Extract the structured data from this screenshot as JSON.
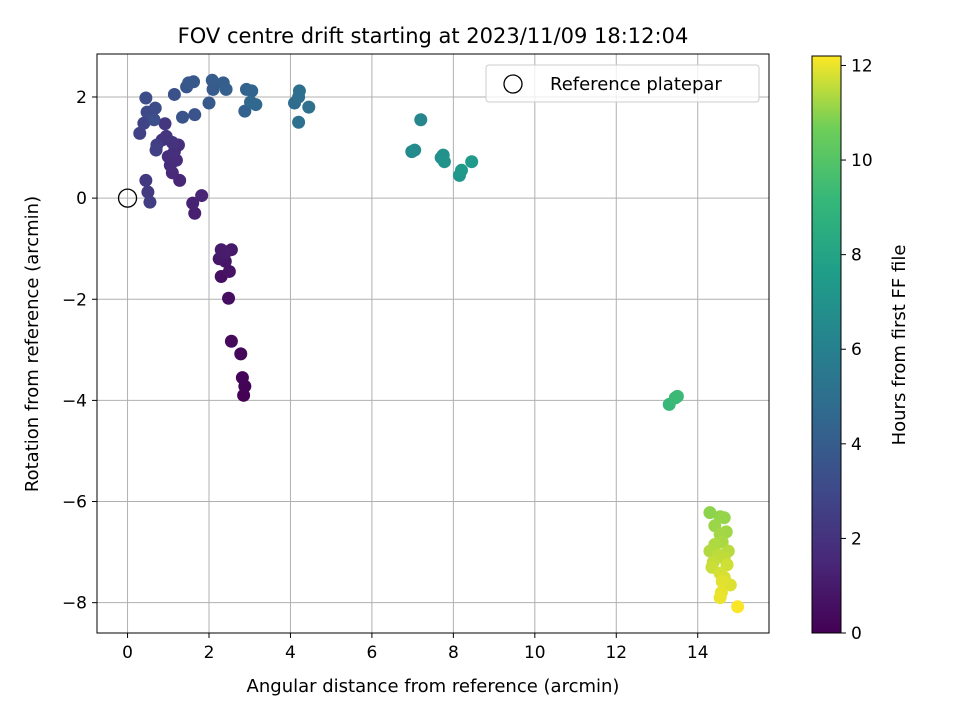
{
  "chart_data": {
    "type": "scatter",
    "title": "FOV centre drift starting at 2023/11/09 18:12:04",
    "xlabel": "Angular distance from reference (arcmin)",
    "ylabel": "Rotation from reference (arcmin)",
    "xlim": [
      -0.75,
      15.75
    ],
    "ylim": [
      -8.6,
      2.85
    ],
    "xticks": [
      0,
      2,
      4,
      6,
      8,
      10,
      12,
      14
    ],
    "yticks": [
      -8,
      -6,
      -4,
      -2,
      0,
      2
    ],
    "grid": true,
    "legend": {
      "placement": "top-right",
      "entries": [
        "Reference platepar"
      ]
    },
    "reference_point": {
      "name": "Reference platepar",
      "x": 0,
      "y": 0
    },
    "colorbar": {
      "label": "Hours from first FF file",
      "range": [
        0,
        12.2
      ],
      "ticks": [
        0,
        2,
        4,
        6,
        8,
        10,
        12
      ],
      "colormap": "viridis"
    },
    "points": [
      {
        "x": 2.85,
        "y": -3.9,
        "c": 0.05
      },
      {
        "x": 2.88,
        "y": -3.72,
        "c": 0.1
      },
      {
        "x": 2.82,
        "y": -3.55,
        "c": 0.15
      },
      {
        "x": 2.78,
        "y": -3.08,
        "c": 0.25
      },
      {
        "x": 2.55,
        "y": -2.83,
        "c": 0.35
      },
      {
        "x": 2.48,
        "y": -1.98,
        "c": 0.5
      },
      {
        "x": 2.3,
        "y": -1.55,
        "c": 0.6
      },
      {
        "x": 2.5,
        "y": -1.45,
        "c": 0.7
      },
      {
        "x": 2.4,
        "y": -1.25,
        "c": 0.8
      },
      {
        "x": 2.25,
        "y": -1.2,
        "c": 0.85
      },
      {
        "x": 2.35,
        "y": -1.12,
        "c": 0.9
      },
      {
        "x": 2.55,
        "y": -1.02,
        "c": 0.95
      },
      {
        "x": 2.3,
        "y": -1.02,
        "c": 1.0
      },
      {
        "x": 2.4,
        "y": -1.08,
        "c": 1.05
      },
      {
        "x": 1.65,
        "y": -0.3,
        "c": 1.2
      },
      {
        "x": 1.6,
        "y": -0.1,
        "c": 1.3
      },
      {
        "x": 1.82,
        "y": 0.05,
        "c": 1.4
      },
      {
        "x": 1.28,
        "y": 0.35,
        "c": 1.5
      },
      {
        "x": 1.1,
        "y": 0.5,
        "c": 1.6
      },
      {
        "x": 1.05,
        "y": 0.65,
        "c": 1.7
      },
      {
        "x": 1.2,
        "y": 0.75,
        "c": 1.75
      },
      {
        "x": 1.0,
        "y": 0.82,
        "c": 1.8
      },
      {
        "x": 1.15,
        "y": 0.92,
        "c": 1.85
      },
      {
        "x": 1.25,
        "y": 1.05,
        "c": 1.9
      },
      {
        "x": 0.85,
        "y": 1.15,
        "c": 1.95
      },
      {
        "x": 1.1,
        "y": 1.1,
        "c": 2.0
      },
      {
        "x": 0.95,
        "y": 1.22,
        "c": 2.1
      },
      {
        "x": 0.92,
        "y": 1.47,
        "c": 2.2
      },
      {
        "x": 0.45,
        "y": 0.35,
        "c": 2.3
      },
      {
        "x": 0.5,
        "y": 0.12,
        "c": 2.35
      },
      {
        "x": 0.55,
        "y": -0.08,
        "c": 2.4
      },
      {
        "x": 0.72,
        "y": 1.05,
        "c": 2.5
      },
      {
        "x": 0.7,
        "y": 0.95,
        "c": 2.6
      },
      {
        "x": 0.3,
        "y": 1.28,
        "c": 2.7
      },
      {
        "x": 0.4,
        "y": 1.48,
        "c": 2.8
      },
      {
        "x": 0.6,
        "y": 1.6,
        "c": 2.9
      },
      {
        "x": 0.48,
        "y": 1.7,
        "c": 3.0
      },
      {
        "x": 0.68,
        "y": 1.78,
        "c": 3.1
      },
      {
        "x": 0.45,
        "y": 1.98,
        "c": 3.2
      },
      {
        "x": 0.65,
        "y": 1.55,
        "c": 3.3
      },
      {
        "x": 1.15,
        "y": 2.05,
        "c": 3.4
      },
      {
        "x": 1.35,
        "y": 1.6,
        "c": 3.5
      },
      {
        "x": 1.65,
        "y": 1.65,
        "c": 3.55
      },
      {
        "x": 1.45,
        "y": 2.2,
        "c": 3.6
      },
      {
        "x": 1.5,
        "y": 2.28,
        "c": 3.7
      },
      {
        "x": 1.62,
        "y": 2.3,
        "c": 3.75
      },
      {
        "x": 2.0,
        "y": 1.88,
        "c": 3.8
      },
      {
        "x": 2.1,
        "y": 2.15,
        "c": 3.9
      },
      {
        "x": 2.08,
        "y": 2.33,
        "c": 4.0
      },
      {
        "x": 2.35,
        "y": 2.28,
        "c": 4.05
      },
      {
        "x": 2.42,
        "y": 2.15,
        "c": 4.1
      },
      {
        "x": 2.88,
        "y": 1.72,
        "c": 4.2
      },
      {
        "x": 2.92,
        "y": 2.15,
        "c": 4.3
      },
      {
        "x": 3.05,
        "y": 2.12,
        "c": 4.4
      },
      {
        "x": 3.02,
        "y": 1.9,
        "c": 4.5
      },
      {
        "x": 3.15,
        "y": 1.85,
        "c": 4.6
      },
      {
        "x": 4.1,
        "y": 1.88,
        "c": 4.8
      },
      {
        "x": 4.2,
        "y": 2.0,
        "c": 4.9
      },
      {
        "x": 4.22,
        "y": 2.12,
        "c": 5.0
      },
      {
        "x": 4.45,
        "y": 1.8,
        "c": 5.05
      },
      {
        "x": 4.2,
        "y": 1.5,
        "c": 5.1
      },
      {
        "x": 7.2,
        "y": 1.55,
        "c": 6.3
      },
      {
        "x": 6.98,
        "y": 0.92,
        "c": 6.5
      },
      {
        "x": 7.05,
        "y": 0.95,
        "c": 6.6
      },
      {
        "x": 7.7,
        "y": 0.8,
        "c": 6.8
      },
      {
        "x": 7.75,
        "y": 0.85,
        "c": 6.9
      },
      {
        "x": 7.78,
        "y": 0.72,
        "c": 7.0
      },
      {
        "x": 8.15,
        "y": 0.45,
        "c": 7.2
      },
      {
        "x": 8.2,
        "y": 0.55,
        "c": 7.3
      },
      {
        "x": 8.45,
        "y": 0.72,
        "c": 7.4
      },
      {
        "x": 13.3,
        "y": -4.08,
        "c": 9.2
      },
      {
        "x": 13.45,
        "y": -3.95,
        "c": 9.3
      },
      {
        "x": 13.5,
        "y": -3.92,
        "c": 9.35
      },
      {
        "x": 14.3,
        "y": -6.22,
        "c": 11.0
      },
      {
        "x": 14.55,
        "y": -6.3,
        "c": 11.05
      },
      {
        "x": 14.65,
        "y": -6.32,
        "c": 11.1
      },
      {
        "x": 14.42,
        "y": -6.48,
        "c": 11.15
      },
      {
        "x": 14.7,
        "y": -6.6,
        "c": 11.2
      },
      {
        "x": 14.55,
        "y": -6.65,
        "c": 11.25
      },
      {
        "x": 14.6,
        "y": -6.8,
        "c": 11.3
      },
      {
        "x": 14.42,
        "y": -6.85,
        "c": 11.35
      },
      {
        "x": 14.3,
        "y": -6.98,
        "c": 11.4
      },
      {
        "x": 14.75,
        "y": -6.98,
        "c": 11.45
      },
      {
        "x": 14.5,
        "y": -7.05,
        "c": 11.5
      },
      {
        "x": 14.65,
        "y": -7.12,
        "c": 11.55
      },
      {
        "x": 14.38,
        "y": -7.2,
        "c": 11.6
      },
      {
        "x": 14.35,
        "y": -7.3,
        "c": 11.65
      },
      {
        "x": 14.72,
        "y": -7.25,
        "c": 11.7
      },
      {
        "x": 14.55,
        "y": -7.42,
        "c": 11.75
      },
      {
        "x": 14.65,
        "y": -7.5,
        "c": 11.8
      },
      {
        "x": 14.8,
        "y": -7.65,
        "c": 11.85
      },
      {
        "x": 14.6,
        "y": -7.58,
        "c": 11.9
      },
      {
        "x": 14.58,
        "y": -7.8,
        "c": 11.95
      },
      {
        "x": 14.55,
        "y": -7.9,
        "c": 12.0
      },
      {
        "x": 14.98,
        "y": -8.08,
        "c": 12.15
      }
    ]
  }
}
